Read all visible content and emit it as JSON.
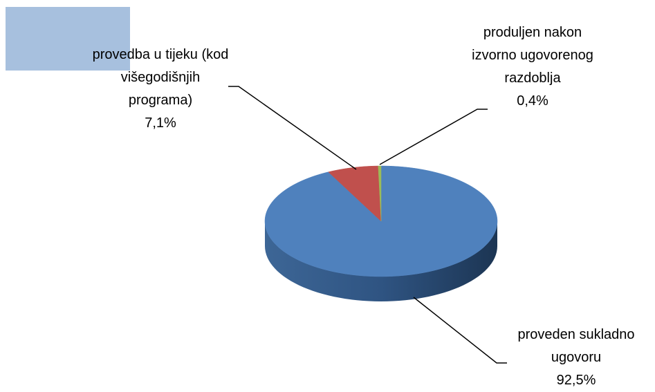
{
  "chart_data": {
    "type": "pie",
    "categories": [
      "proveden sukladno ugovoru",
      "provedba u tijeku (kod višegodišnjih programa)",
      "produljen nakon izvorno ugovorenog razdoblja"
    ],
    "values": [
      92.5,
      7.1,
      0.4
    ],
    "value_labels": [
      "92,5%",
      "7,1%",
      "0,4%"
    ],
    "colors": [
      "#4f81bd",
      "#c0504d",
      "#9bbb59"
    ]
  }
}
